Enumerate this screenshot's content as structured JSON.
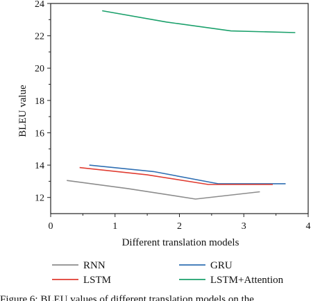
{
  "chart_data": {
    "type": "line",
    "xlabel": "Different translation models",
    "ylabel": "BLEU value",
    "xlim": [
      0,
      4
    ],
    "ylim": [
      11,
      24
    ],
    "xticks": [
      0,
      1,
      2,
      3,
      4
    ],
    "yticks": [
      12,
      14,
      16,
      18,
      20,
      22,
      24
    ],
    "grid": false,
    "legend_position": "bottom",
    "series": [
      {
        "name": "RNN",
        "color": "#8c8c8c",
        "x": [
          0.25,
          1.2,
          2.25,
          3.25
        ],
        "y": [
          13.05,
          12.55,
          11.9,
          12.35
        ]
      },
      {
        "name": "GRU",
        "color": "#2f6fb3",
        "x": [
          0.6,
          1.6,
          2.6,
          3.65
        ],
        "y": [
          14.0,
          13.6,
          12.85,
          12.85
        ]
      },
      {
        "name": "LSTM",
        "color": "#e03c31",
        "x": [
          0.45,
          1.5,
          2.45,
          3.45
        ],
        "y": [
          13.85,
          13.4,
          12.8,
          12.8
        ]
      },
      {
        "name": "LSTM+Attention",
        "color": "#1aa06b",
        "x": [
          0.8,
          1.8,
          2.8,
          3.8
        ],
        "y": [
          23.55,
          22.85,
          22.3,
          22.2
        ]
      }
    ]
  },
  "caption": "Figure 6: BLEU values of different translation models on the"
}
